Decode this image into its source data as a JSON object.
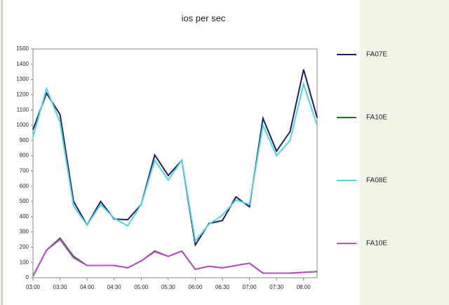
{
  "chart_data": {
    "type": "line",
    "title": "ios per sec",
    "categories": [
      "03:00",
      null,
      "03:30",
      null,
      "04:00",
      null,
      "04:30",
      null,
      "05:00",
      null,
      "05:30",
      null,
      "06:00",
      null,
      "06:30",
      null,
      "07:00",
      null,
      "07:30",
      null,
      "08:00",
      null
    ],
    "series": [
      {
        "name": "FA07E",
        "color": "#1a1f5e",
        "values": [
          970,
          1210,
          1070,
          500,
          345,
          500,
          385,
          380,
          480,
          805,
          670,
          770,
          215,
          355,
          375,
          530,
          465,
          1045,
          830,
          958,
          1365,
          1050
        ]
      },
      {
        "name": "FA10E",
        "color": "#1f7a1f",
        "values": [
          10,
          180,
          260,
          140,
          80,
          80,
          80,
          65,
          110,
          175,
          140,
          175,
          55,
          75,
          65,
          80,
          95,
          30,
          30,
          30,
          35,
          40
        ]
      },
      {
        "name": "FA08E",
        "color": "#4fd6e0",
        "values": [
          920,
          1240,
          1020,
          470,
          345,
          480,
          390,
          340,
          480,
          770,
          640,
          770,
          240,
          350,
          410,
          510,
          480,
          1000,
          800,
          900,
          1270,
          1000
        ]
      },
      {
        "name": "FA10E",
        "color": "#b44fc4",
        "values": [
          10,
          180,
          250,
          130,
          80,
          80,
          80,
          65,
          110,
          170,
          140,
          175,
          55,
          75,
          65,
          80,
          95,
          30,
          30,
          30,
          35,
          40
        ]
      }
    ],
    "ylim": [
      0,
      1500
    ],
    "yticks": [
      0,
      100,
      200,
      300,
      400,
      500,
      600,
      700,
      800,
      900,
      1000,
      1100,
      1200,
      1300,
      1400,
      1500
    ],
    "grid": false,
    "legend": "right"
  }
}
